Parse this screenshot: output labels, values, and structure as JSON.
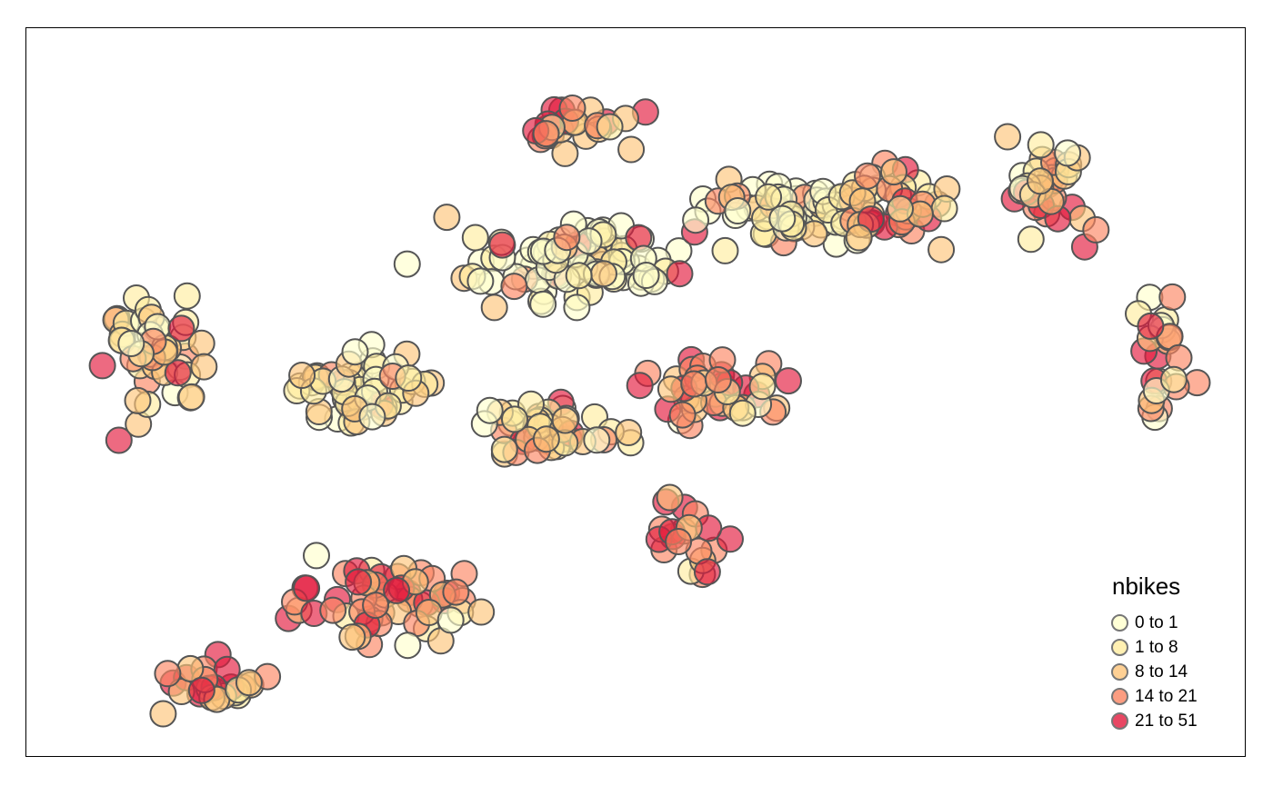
{
  "legend": {
    "title": "nbikes",
    "classes": [
      {
        "label": "0 to 1",
        "color": "#ffffcc"
      },
      {
        "label": "1 to 8",
        "color": "#ffeda0"
      },
      {
        "label": "8 to 14",
        "color": "#fec57a"
      },
      {
        "label": "14 to 21",
        "color": "#fc8562"
      },
      {
        "label": "21 to 51",
        "color": "#e31a3d"
      }
    ]
  },
  "colors": {
    "frame": "#000000",
    "point_stroke": "#555555",
    "background": "#ffffff"
  }
}
